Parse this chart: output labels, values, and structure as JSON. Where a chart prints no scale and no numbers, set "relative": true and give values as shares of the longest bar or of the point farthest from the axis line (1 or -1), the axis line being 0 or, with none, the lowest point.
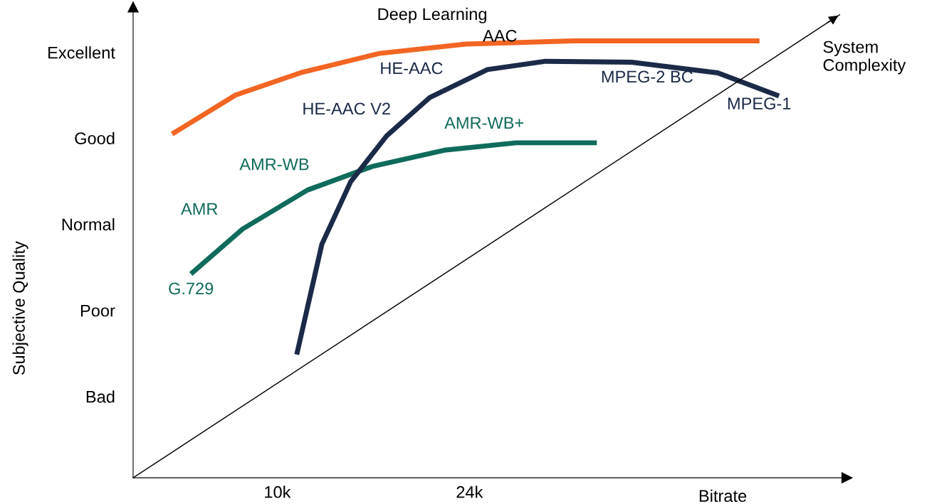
{
  "chart_data": {
    "type": "line",
    "relative": true,
    "xlabel": "Bitrate",
    "xlim": [
      -0.5,
      51.5
    ],
    "xticks": [
      {
        "value": 10,
        "label": "10k"
      },
      {
        "value": 24,
        "label": "24k"
      }
    ],
    "grid": false,
    "legend": false,
    "marker": "none",
    "line_style": "solid",
    "series": [
      {
        "color": "#f26522",
        "x": [
          2.34,
          6.96,
          11.68,
          17.45,
          23.74,
          31.6,
          45.13
        ],
        "values": [
          0.742,
          0.826,
          0.874,
          0.916,
          0.936,
          0.943,
          0.943
        ]
      },
      {
        "color": "#0f6b5b",
        "x": [
          3.71,
          7.48,
          12.2,
          16.92,
          22.17,
          27.41,
          33.28
        ],
        "values": [
          0.44,
          0.537,
          0.621,
          0.672,
          0.707,
          0.723,
          0.723
        ]
      },
      {
        "color": "#1b2a47",
        "x": [
          11.42,
          13.25,
          15.35,
          17.97,
          21.12,
          25.31,
          29.51,
          35.8,
          42.09,
          46.55
        ],
        "values": [
          0.266,
          0.504,
          0.639,
          0.738,
          0.821,
          0.881,
          0.899,
          0.897,
          0.874,
          0.824
        ]
      },
      {
        "color": "#000000",
        "x": [
          -0.5,
          51
        ],
        "values": [
          0,
          1
        ]
      }
    ],
    "annotations": [
      "Excellent",
      "Good",
      "Normal",
      "Poor",
      "Bad",
      "Deep Learning",
      "AAC",
      "HE-AAC",
      "MPEG-2 BC",
      "MPEG-1",
      "HE-AAC V2",
      "AMR-WB+",
      "AMR-WB",
      "AMR",
      "G.729",
      "System\nComplexity",
      "Subjective Quality"
    ]
  }
}
